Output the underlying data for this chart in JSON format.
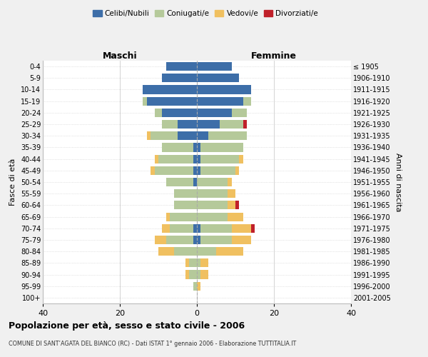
{
  "age_groups": [
    "0-4",
    "5-9",
    "10-14",
    "15-19",
    "20-24",
    "25-29",
    "30-34",
    "35-39",
    "40-44",
    "45-49",
    "50-54",
    "55-59",
    "60-64",
    "65-69",
    "70-74",
    "75-79",
    "80-84",
    "85-89",
    "90-94",
    "95-99",
    "100+"
  ],
  "birth_years": [
    "2001-2005",
    "1996-2000",
    "1991-1995",
    "1986-1990",
    "1981-1985",
    "1976-1980",
    "1971-1975",
    "1966-1970",
    "1961-1965",
    "1956-1960",
    "1951-1955",
    "1946-1950",
    "1941-1945",
    "1936-1940",
    "1931-1935",
    "1926-1930",
    "1921-1925",
    "1916-1920",
    "1911-1915",
    "1906-1910",
    "≤ 1905"
  ],
  "male": {
    "celibi": [
      8,
      9,
      14,
      13,
      9,
      5,
      5,
      1,
      1,
      1,
      1,
      0,
      0,
      0,
      1,
      1,
      0,
      0,
      0,
      0,
      0
    ],
    "coniugati": [
      0,
      0,
      0,
      1,
      2,
      4,
      7,
      8,
      9,
      10,
      7,
      6,
      6,
      7,
      6,
      7,
      6,
      2,
      2,
      1,
      0
    ],
    "vedovi": [
      0,
      0,
      0,
      0,
      0,
      0,
      1,
      0,
      1,
      1,
      0,
      0,
      0,
      1,
      2,
      3,
      4,
      1,
      1,
      0,
      0
    ],
    "divorziati": [
      0,
      0,
      0,
      0,
      0,
      0,
      0,
      0,
      0,
      0,
      0,
      0,
      0,
      0,
      0,
      0,
      0,
      0,
      0,
      0,
      0
    ]
  },
  "female": {
    "nubili": [
      9,
      11,
      14,
      12,
      9,
      6,
      3,
      1,
      1,
      1,
      0,
      0,
      0,
      0,
      1,
      1,
      0,
      0,
      0,
      0,
      0
    ],
    "coniugate": [
      0,
      0,
      0,
      2,
      4,
      6,
      10,
      11,
      10,
      9,
      8,
      8,
      8,
      8,
      8,
      8,
      5,
      1,
      1,
      0,
      0
    ],
    "vedove": [
      0,
      0,
      0,
      0,
      0,
      0,
      0,
      0,
      1,
      1,
      1,
      2,
      2,
      4,
      5,
      5,
      7,
      2,
      2,
      1,
      0
    ],
    "divorziate": [
      0,
      0,
      0,
      0,
      0,
      1,
      0,
      0,
      0,
      0,
      0,
      0,
      1,
      0,
      1,
      0,
      0,
      0,
      0,
      0,
      0
    ]
  },
  "colors": {
    "celibi": "#3d6ea8",
    "coniugati": "#b5c99a",
    "vedovi": "#f0c060",
    "divorziati": "#c0202a"
  },
  "xlim": 40,
  "title": "Popolazione per età, sesso e stato civile - 2006",
  "subtitle": "COMUNE DI SANT’AGATA DEL BIANCO (RC) - Dati ISTAT 1° gennaio 2006 - Elaborazione TUTTITALIA.IT",
  "ylabel_left": "Fasce di età",
  "ylabel_right": "Anni di nascita",
  "xlabel_maschi": "Maschi",
  "xlabel_femmine": "Femmine",
  "bg_color": "#f0f0f0",
  "plot_bg": "#ffffff",
  "grid_color": "#cccccc"
}
